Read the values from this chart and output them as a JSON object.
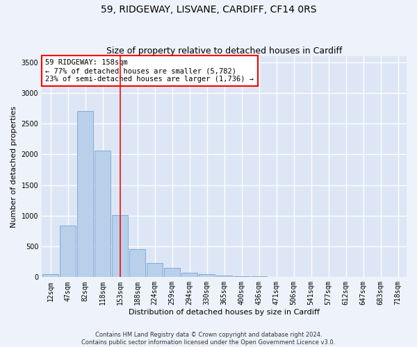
{
  "title_line1": "59, RIDGEWAY, LISVANE, CARDIFF, CF14 0RS",
  "title_line2": "Size of property relative to detached houses in Cardiff",
  "xlabel": "Distribution of detached houses by size in Cardiff",
  "ylabel": "Number of detached properties",
  "bar_labels": [
    "12sqm",
    "47sqm",
    "82sqm",
    "118sqm",
    "153sqm",
    "188sqm",
    "224sqm",
    "259sqm",
    "294sqm",
    "330sqm",
    "365sqm",
    "400sqm",
    "436sqm",
    "471sqm",
    "506sqm",
    "541sqm",
    "577sqm",
    "612sqm",
    "647sqm",
    "683sqm",
    "718sqm"
  ],
  "bar_values": [
    50,
    840,
    2700,
    2060,
    1010,
    455,
    230,
    155,
    75,
    45,
    30,
    20,
    15,
    8,
    5,
    3,
    2,
    1,
    1,
    1,
    0
  ],
  "bar_color": "#b8d0ea",
  "bar_edge_color": "#6699cc",
  "vline_x": 4.0,
  "vline_color": "red",
  "annotation_text": "59 RIDGEWAY: 158sqm\n← 77% of detached houses are smaller (5,782)\n23% of semi-detached houses are larger (1,736) →",
  "annotation_box_color": "white",
  "annotation_box_edge_color": "red",
  "ylim": [
    0,
    3600
  ],
  "yticks": [
    0,
    500,
    1000,
    1500,
    2000,
    2500,
    3000,
    3500
  ],
  "footer_line1": "Contains HM Land Registry data © Crown copyright and database right 2024.",
  "footer_line2": "Contains public sector information licensed under the Open Government Licence v3.0.",
  "background_color": "#eef2fa",
  "plot_background_color": "#dde6f5",
  "grid_color": "white",
  "title_fontsize": 10,
  "subtitle_fontsize": 9,
  "axis_label_fontsize": 8,
  "tick_fontsize": 7,
  "annotation_fontsize": 7.5,
  "footer_fontsize": 6
}
